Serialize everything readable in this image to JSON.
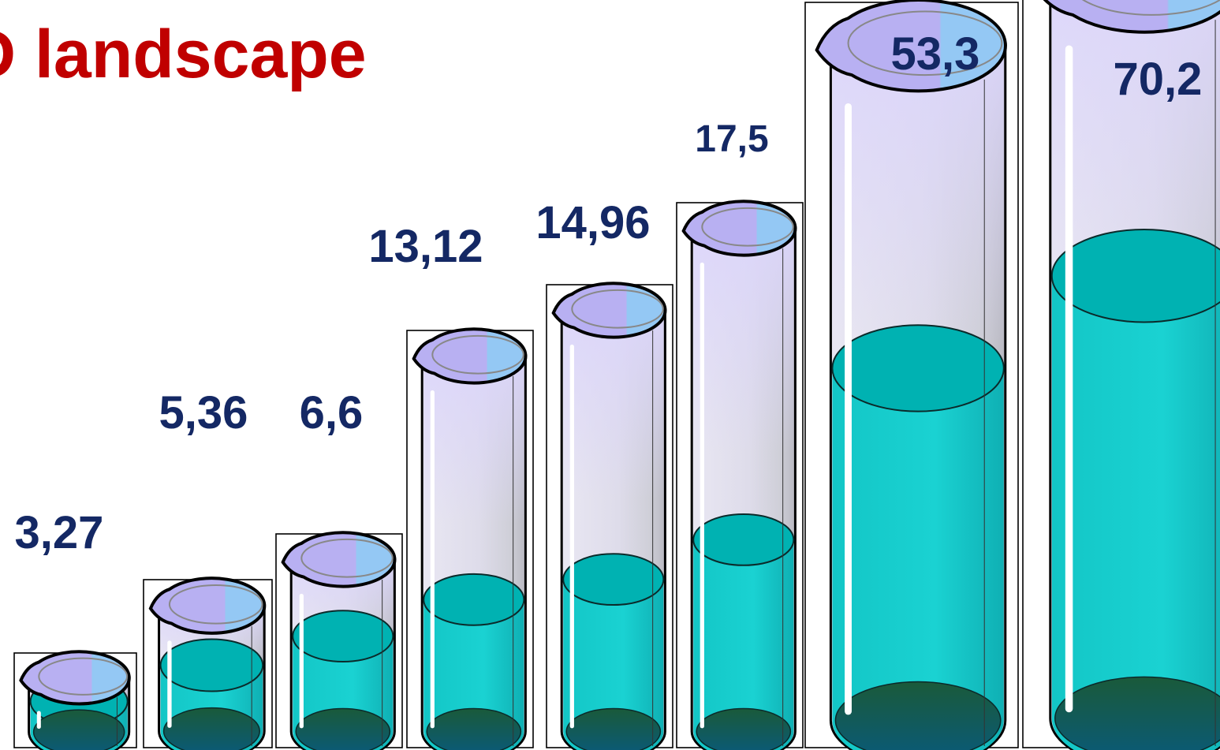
{
  "title": "D landscape",
  "chart_data": {
    "type": "bar",
    "title": "D landscape",
    "categories": [],
    "series": [
      {
        "values": [
          3.27,
          5.36,
          6.6,
          13.12,
          14.96,
          17.5,
          53.3,
          70.2
        ]
      }
    ],
    "labels": [
      "3,27",
      "5,36",
      "6,6",
      "13,12",
      "14,96",
      "17,5",
      "53,3",
      "70,2"
    ],
    "mark": "beaker",
    "grid": false,
    "legend": "none"
  },
  "colors": {
    "title": "#c00000",
    "labels": "#142864",
    "glass": "#dcd6f7",
    "water": "#20c8c8",
    "water_surface": "#00b0b0",
    "bottom": "#1e5a3c"
  }
}
